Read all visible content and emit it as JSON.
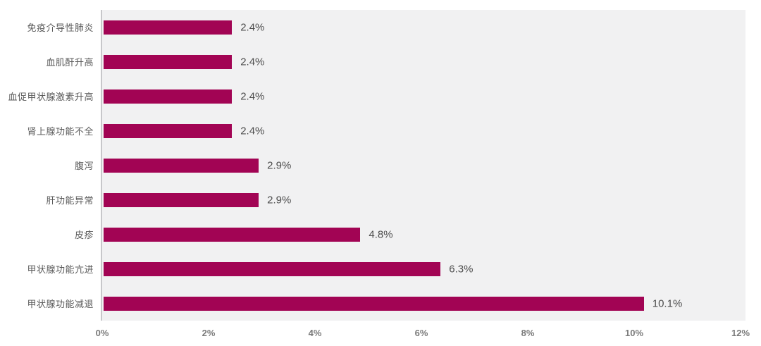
{
  "chart_data": {
    "type": "bar",
    "orientation": "horizontal",
    "title": "",
    "xlabel": "",
    "ylabel": "",
    "categories": [
      "免疫介导性肺炎",
      "血肌酐升高",
      "血促甲状腺激素升高",
      "肾上腺功能不全",
      "腹泻",
      "肝功能异常",
      "皮疹",
      "甲状腺功能亢进",
      "甲状腺功能减退"
    ],
    "values": [
      2.4,
      2.4,
      2.4,
      2.4,
      2.9,
      2.9,
      4.8,
      6.3,
      10.1
    ],
    "value_labels": [
      "2.4%",
      "2.4%",
      "2.4%",
      "2.4%",
      "2.9%",
      "2.9%",
      "4.8%",
      "6.3%",
      "10.1%"
    ],
    "x_ticks": [
      "0%",
      "2%",
      "4%",
      "6%",
      "8%",
      "10%",
      "12%"
    ],
    "x_tick_values": [
      0,
      2,
      4,
      6,
      8,
      10,
      12
    ],
    "xlim": [
      0,
      12
    ],
    "grid": false,
    "legend": "none",
    "colors": {
      "bar": "#A20454",
      "plot_background": "#F1F1F2",
      "page_background": "#FFFFFF",
      "axis_line": "#C7C7CA",
      "category_label": "#5A5A5A",
      "value_label": "#4D4D4D",
      "tick_label": "#7A7A7A"
    }
  }
}
